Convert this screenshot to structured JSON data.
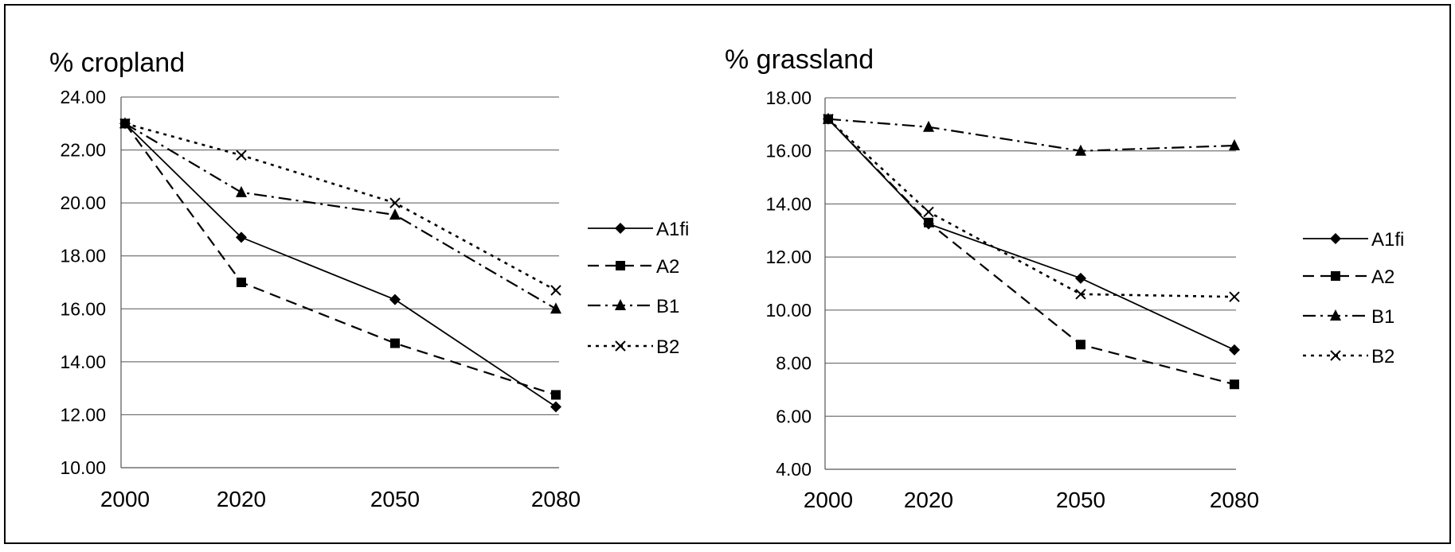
{
  "chart_data": [
    {
      "type": "line",
      "title": "% cropland",
      "xlabel": "",
      "ylabel": "",
      "categories": [
        "2000",
        "2020",
        "2050",
        "2080"
      ],
      "ylim": [
        10,
        24
      ],
      "yticks": [
        "10.00",
        "12.00",
        "14.00",
        "16.00",
        "18.00",
        "20.00",
        "22.00",
        "24.00"
      ],
      "grid": true,
      "legend_position": "right",
      "series": [
        {
          "name": "A1fi",
          "values": [
            23.0,
            18.7,
            16.35,
            12.3
          ]
        },
        {
          "name": "A2",
          "values": [
            23.0,
            17.0,
            14.7,
            12.75
          ]
        },
        {
          "name": "B1",
          "values": [
            23.0,
            20.4,
            19.55,
            16.0
          ]
        },
        {
          "name": "B2",
          "values": [
            23.0,
            21.8,
            20.0,
            16.7
          ]
        }
      ]
    },
    {
      "type": "line",
      "title": "% grassland",
      "xlabel": "",
      "ylabel": "",
      "categories": [
        "2000",
        "2020",
        "2050",
        "2080"
      ],
      "ylim": [
        4,
        18
      ],
      "yticks": [
        "4.00",
        "6.00",
        "8.00",
        "10.00",
        "12.00",
        "14.00",
        "16.00",
        "18.00"
      ],
      "grid": true,
      "legend_position": "right",
      "series": [
        {
          "name": "A1fi",
          "values": [
            17.2,
            13.25,
            11.2,
            8.5
          ]
        },
        {
          "name": "A2",
          "values": [
            17.2,
            13.3,
            8.7,
            7.2
          ]
        },
        {
          "name": "B1",
          "values": [
            17.2,
            16.9,
            16.0,
            16.2
          ]
        },
        {
          "name": "B2",
          "values": [
            17.2,
            13.7,
            10.6,
            10.5
          ]
        }
      ]
    }
  ]
}
